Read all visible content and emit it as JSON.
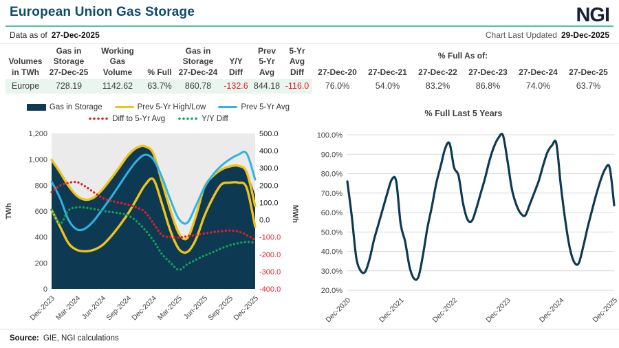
{
  "header": {
    "title": "European Union Gas Storage",
    "logo": "NGI",
    "data_as_of_label": "Data as of",
    "data_as_of": "27-Dec-2025",
    "last_updated_label": "Chart Last Updated",
    "last_updated": "29-Dec-2025"
  },
  "table": {
    "columns": [
      "Volumes\nin TWh",
      "Gas in\nStorage\n27-Dec-25",
      "Working\nGas\nVolume",
      "% Full",
      "Gas in\nStorage\n27-Dec-24",
      "Y/Y\nDiff",
      "Prev\n5-Yr\nAvg",
      "5-Yr\nAvg\nDiff"
    ],
    "group_header": "% Full As of:",
    "pct_columns": [
      "27-Dec-20",
      "27-Dec-21",
      "27-Dec-22",
      "27-Dec-23",
      "27-Dec-24",
      "27-Dec-25"
    ],
    "row": {
      "region": "Europe",
      "values": [
        "728.19",
        "1142.62",
        "63.7%",
        "860.78",
        "-132.6",
        "844.18",
        "-116.0"
      ],
      "pct_values": [
        "76.0%",
        "54.0%",
        "83.2%",
        "86.8%",
        "74.0%",
        "63.7%"
      ]
    }
  },
  "legend": [
    "Gas in Storage",
    "Prev 5-Yr High/Low",
    "Prev 5-Yr Avg",
    "Diff to 5-Yr Avg",
    "Y/Y Diff"
  ],
  "colors": {
    "navy": "#0d3a52",
    "yellow": "#f0c31b",
    "blue": "#2fb4e5",
    "red": "#e41e26",
    "green": "#12a257",
    "accent_mint": "#53c39b",
    "row_mint": "#e9f6ef",
    "plot_bg": "#ebebeb",
    "grid": "#d9d9d9",
    "axis_text": "#404040",
    "neg_text": "#e41e26"
  },
  "chart_data": [
    {
      "type": "area",
      "title": "",
      "months": [
        "Dec-2023",
        "Jan-2024",
        "Feb-2024",
        "Mar-2024",
        "Apr-2024",
        "May-2024",
        "Jun-2024",
        "Jul-2024",
        "Aug-2024",
        "Sep-2024",
        "Oct-2024",
        "Nov-2024",
        "Dec-2024",
        "Jan-2025",
        "Feb-2025",
        "Mar-2025",
        "Apr-2025",
        "May-2025",
        "Jun-2025",
        "Jul-2025",
        "Aug-2025",
        "Sep-2025",
        "Oct-2025",
        "Nov-2025",
        "Dec-2025"
      ],
      "x_ticks": {
        "indices": [
          0,
          3,
          6,
          9,
          12,
          15,
          18,
          21,
          24
        ],
        "labels": [
          "Dec-2023",
          "Mar-2024",
          "Jun-2024",
          "Sep-2024",
          "Dec-2024",
          "Mar-2025",
          "Jun-2025",
          "Sep-2025",
          "Dec-2025"
        ]
      },
      "left_axis": {
        "label": "TWh",
        "range": [
          0,
          1200
        ],
        "tick_values": [
          1200,
          1000,
          800,
          600,
          400,
          200,
          0
        ],
        "tick_labels": [
          "1,200",
          "1,000",
          "800",
          "600",
          "400",
          "200",
          "0"
        ]
      },
      "right_axis": {
        "label": "MWh",
        "range": [
          -400,
          500
        ],
        "tick_values": [
          500,
          400,
          300,
          200,
          100,
          0,
          -100,
          -200,
          -300,
          -400
        ],
        "tick_labels": [
          "500.0",
          "400.0",
          "300.0",
          "200.0",
          "100.0",
          "0.0",
          "-100.0",
          "-200.0",
          "-300.0",
          "-400.0"
        ]
      },
      "series": [
        {
          "name": "Gas in Storage",
          "kind": "area",
          "axis": "left",
          "color_key": "navy",
          "values": [
            992,
            880,
            770,
            705,
            668,
            700,
            765,
            845,
            935,
            1020,
            1070,
            1091,
            861,
            690,
            520,
            394,
            386,
            480,
            594,
            697,
            794,
            880,
            918,
            895,
            728
          ]
        },
        {
          "name": "Prev 5-Yr High",
          "kind": "line",
          "axis": "left",
          "color_key": "yellow",
          "values": [
            996,
            900,
            795,
            718,
            688,
            706,
            768,
            850,
            940,
            1030,
            1088,
            1100,
            1045,
            830,
            610,
            430,
            392,
            560,
            785,
            870,
            920,
            945,
            950,
            900,
            640
          ]
        },
        {
          "name": "Prev 5-Yr Low",
          "kind": "line",
          "axis": "left",
          "color_key": "yellow",
          "values": [
            610,
            480,
            352,
            300,
            290,
            302,
            338,
            405,
            488,
            580,
            690,
            800,
            845,
            660,
            450,
            308,
            285,
            380,
            560,
            700,
            805,
            820,
            820,
            780,
            480
          ]
        },
        {
          "name": "Prev 5-Yr Avg",
          "kind": "line",
          "axis": "left",
          "color_key": "blue",
          "values": [
            828,
            700,
            532,
            458,
            468,
            528,
            615,
            705,
            802,
            900,
            985,
            1035,
            1000,
            865,
            690,
            540,
            510,
            640,
            780,
            880,
            950,
            1000,
            1035,
            1045,
            844
          ]
        },
        {
          "name": "Diff to 5-Yr Avg",
          "kind": "dotted",
          "axis": "right",
          "color_key": "red",
          "values": [
            160,
            198,
            214,
            218,
            192,
            158,
            126,
            110,
            98,
            88,
            72,
            45,
            -20,
            -88,
            -100,
            -103,
            -95,
            -88,
            -80,
            -72,
            -66,
            -62,
            -68,
            -88,
            -116
          ]
        },
        {
          "name": "Y/Y Diff",
          "kind": "dotted",
          "axis": "right",
          "color_key": "green",
          "values": [
            58,
            -22,
            55,
            72,
            70,
            62,
            52,
            45,
            38,
            26,
            -8,
            -58,
            -120,
            -198,
            -248,
            -290,
            -258,
            -232,
            -208,
            -188,
            -166,
            -148,
            -136,
            -128,
            -133
          ]
        }
      ]
    },
    {
      "type": "line",
      "title": "% Full Last 5 Years",
      "x_start": "Dec-2020",
      "x_step_months": 1,
      "x_ticks": {
        "indices": [
          0,
          12,
          24,
          36,
          48,
          60
        ],
        "labels": [
          "Dec-2020",
          "Dec-2021",
          "Dec-2022",
          "Dec-2023",
          "Dec-2024",
          "Dec-2025"
        ]
      },
      "ylim": [
        20,
        100
      ],
      "y_ticks": {
        "values": [
          100,
          90,
          80,
          70,
          60,
          50,
          40,
          30,
          20
        ],
        "labels": [
          "100.0%",
          "90.0%",
          "80.0%",
          "70.0%",
          "60.0%",
          "50.0%",
          "40.0%",
          "30.0%",
          "20.0%"
        ]
      },
      "color_key": "navy",
      "values": [
        76,
        58,
        37,
        30,
        29.5,
        36,
        46,
        54,
        62,
        70,
        77,
        76,
        54,
        45,
        32,
        26,
        27,
        38,
        52,
        63,
        75,
        84,
        93,
        95.5,
        83.2,
        79,
        65,
        56.5,
        55.7,
        62,
        70,
        78,
        87,
        94,
        98.5,
        99.7,
        86.8,
        72,
        64,
        59.5,
        58.5,
        64,
        70,
        76,
        84,
        91,
        94.5,
        95.5,
        74,
        56,
        42,
        34.5,
        33.8,
        42,
        52,
        61,
        69.5,
        77,
        82.5,
        83,
        63.7
      ]
    }
  ],
  "footer": {
    "source_label": "Source:",
    "source": "GIE, NGI calculations"
  }
}
